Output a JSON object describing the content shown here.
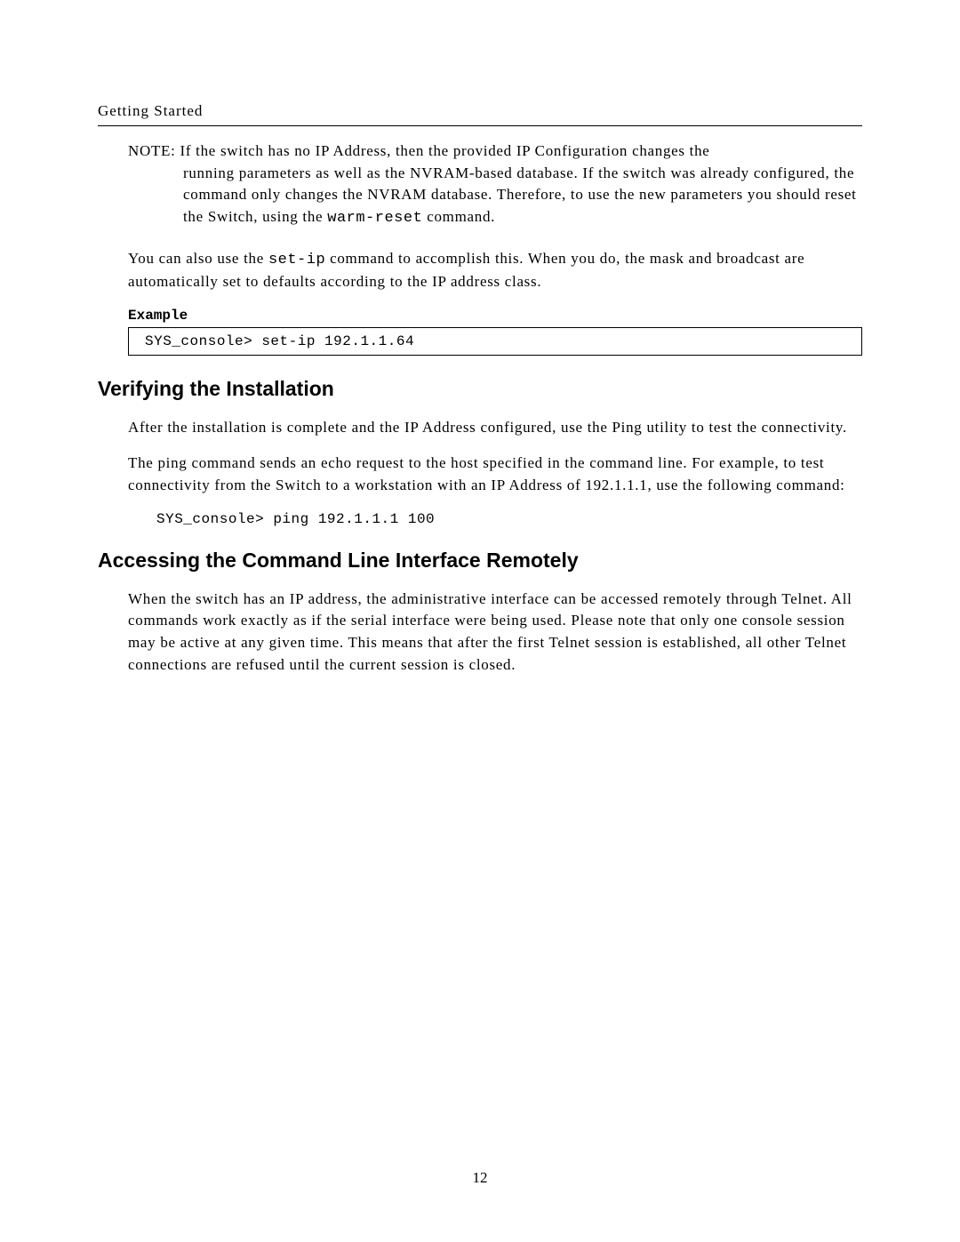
{
  "header": {
    "title": "Getting Started"
  },
  "note": {
    "label": "NOTE:",
    "text_line1": "If the switch has no IP Address, then the provided IP Configuration changes the",
    "text_line2": "running parameters as well as the NVRAM-based database. If the switch was already configured, the command only changes the NVRAM database. Therefore, to use the new parameters you should reset the Switch, using the ",
    "code_inline": "warm-reset",
    "text_line3": " command."
  },
  "para1": {
    "text_a": "You can also use the ",
    "code_a": "set-ip",
    "text_b": " command to accomplish this. When you do, the mask and broadcast are automatically set to defaults according to the IP address class."
  },
  "example": {
    "label": "Example",
    "code": "SYS_console> set-ip 192.1.1.64"
  },
  "section1": {
    "heading": "Verifying the Installation",
    "para1": "After the installation is complete and the IP Address configured, use the Ping utility to test the connectivity.",
    "para2": "The ping command sends an echo request to the host specified in the command line. For example, to test connectivity from the Switch to a workstation with an IP Address of 192.1.1.1, use the following command:",
    "code": "SYS_console> ping 192.1.1.1 100"
  },
  "section2": {
    "heading": "Accessing the Command Line Interface Remotely",
    "para1": "When the switch has an IP address, the administrative interface can be accessed remotely through Telnet. All commands work exactly as if the serial interface were being used. Please note that only one console session may be active at any given time. This means that after the first Telnet session is established, all other Telnet connections are refused until the current session is closed."
  },
  "footer": {
    "page_number": "12"
  }
}
